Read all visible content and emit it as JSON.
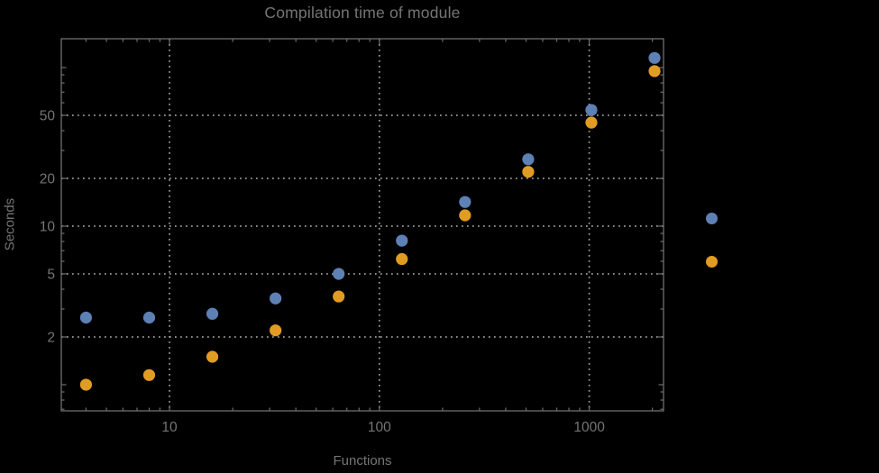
{
  "title": "Compilation time of module",
  "x_axis_label": "Functions",
  "y_axis_label": "Seconds",
  "colors": {
    "background": "#000000",
    "frame": "#6e6e6e",
    "grid": "#9a9a9a",
    "text": "#757575",
    "series_blue": "#5e81b5",
    "series_orange": "#e19c24"
  },
  "chart_data": {
    "type": "scatter",
    "title": "Compilation time of module",
    "xlabel": "Functions",
    "ylabel": "Seconds",
    "x_scale": "log",
    "y_scale": "log",
    "xlim": [
      3.05,
      2260
    ],
    "ylim": [
      0.684,
      152
    ],
    "grid": true,
    "x": [
      4,
      8,
      16,
      32,
      64,
      128,
      256,
      512,
      1024,
      2048
    ],
    "series": [
      {
        "name": "blue",
        "color": "#5e81b5",
        "values": [
          2.65,
          2.65,
          2.8,
          3.5,
          5.0,
          8.1,
          14.2,
          26.4,
          54,
          115
        ]
      },
      {
        "name": "orange",
        "color": "#e19c24",
        "values": [
          1.0,
          1.15,
          1.5,
          2.2,
          3.6,
          6.2,
          11.7,
          22,
          45,
          95
        ]
      }
    ],
    "x_ticks": {
      "major": [
        {
          "value": 10,
          "label": "10"
        },
        {
          "value": 100,
          "label": "100"
        },
        {
          "value": 1000,
          "label": "1000"
        }
      ],
      "minor": [
        4,
        5,
        6,
        7,
        8,
        9,
        20,
        30,
        40,
        50,
        60,
        70,
        80,
        90,
        200,
        300,
        400,
        500,
        600,
        700,
        800,
        900,
        2000
      ]
    },
    "y_ticks": {
      "major": [
        {
          "value": 2,
          "label": "2"
        },
        {
          "value": 5,
          "label": "5"
        },
        {
          "value": 10,
          "label": "10"
        },
        {
          "value": 20,
          "label": "20"
        },
        {
          "value": 50,
          "label": "50"
        }
      ],
      "unlabeled_major": [
        1,
        100
      ],
      "minor": [
        0.7,
        0.8,
        0.9,
        3,
        4,
        6,
        7,
        8,
        9,
        30,
        40,
        60,
        70,
        80,
        90
      ]
    },
    "gridlines": {
      "x": [
        10,
        100,
        1000
      ],
      "y": [
        2,
        5,
        10,
        20,
        50
      ]
    },
    "legend": {
      "position": "right",
      "markers": [
        {
          "series": "blue",
          "color": "#5e81b5"
        },
        {
          "series": "orange",
          "color": "#e19c24"
        }
      ]
    }
  }
}
